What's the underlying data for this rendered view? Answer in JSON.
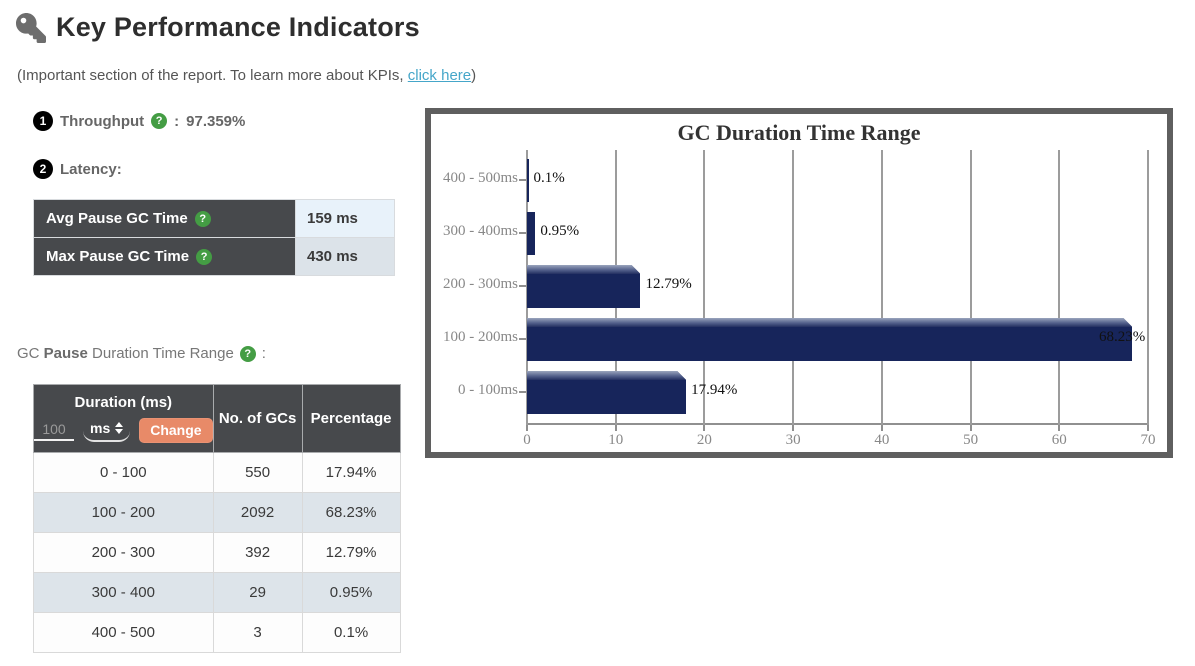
{
  "page": {
    "title": "Key Performance Indicators",
    "subtitle_prefix": "(Important section of the report. To learn more about KPIs, ",
    "subtitle_link": "click here",
    "subtitle_suffix": ")"
  },
  "throughput": {
    "badge": "1",
    "label": "Throughput",
    "separator": ":",
    "value": "97.359%"
  },
  "latency": {
    "badge": "2",
    "label": "Latency:",
    "rows": [
      {
        "label": "Avg Pause GC Time",
        "value": "159 ms"
      },
      {
        "label": "Max Pause GC Time",
        "value": "430 ms"
      }
    ]
  },
  "duration_section": {
    "label_prefix": "GC ",
    "label_bold": "Pause",
    "label_suffix": " Duration Time Range",
    "colon": ":",
    "table": {
      "headers": {
        "duration": "Duration (ms)",
        "gcs": "No. of GCs",
        "percentage": "Percentage"
      },
      "input_value": "100",
      "unit_selected": "ms",
      "change_button": "Change",
      "rows": [
        {
          "duration": "0 - 100",
          "gcs": "550",
          "percentage": "17.94%"
        },
        {
          "duration": "100 - 200",
          "gcs": "2092",
          "percentage": "68.23%"
        },
        {
          "duration": "200 - 300",
          "gcs": "392",
          "percentage": "12.79%"
        },
        {
          "duration": "300 - 400",
          "gcs": "29",
          "percentage": "0.95%"
        },
        {
          "duration": "400 - 500",
          "gcs": "3",
          "percentage": "0.1%"
        }
      ]
    }
  },
  "chart_data": {
    "type": "bar",
    "orientation": "horizontal",
    "title": "GC Duration Time Range",
    "categories": [
      "400 - 500ms",
      "300 - 400ms",
      "200 - 300ms",
      "100 - 200ms",
      "0 - 100ms"
    ],
    "values": [
      0.1,
      0.95,
      12.79,
      68.23,
      17.94
    ],
    "value_labels": [
      "0.1%",
      "0.95%",
      "12.79%",
      "68.23%",
      "17.94%"
    ],
    "xlim": [
      0,
      70
    ],
    "x_ticks": [
      0,
      10,
      20,
      30,
      40,
      50,
      60,
      70
    ],
    "grid": true,
    "legend": "none",
    "bar_color": "#17255b"
  },
  "icons": {
    "key": "key-icon",
    "help": "question-circle-icon",
    "caret": "sort-carets-icon"
  },
  "colors": {
    "accent_button": "#e88a68",
    "header_dark": "#47494c",
    "row_alt": "#dde4ea",
    "latency_value_1": "#e8f2fa",
    "latency_value_2": "#dce3e9",
    "link": "#45a6c9",
    "help_green": "#449d44",
    "bar_navy": "#17255b",
    "chart_border": "#5f5f5f"
  }
}
